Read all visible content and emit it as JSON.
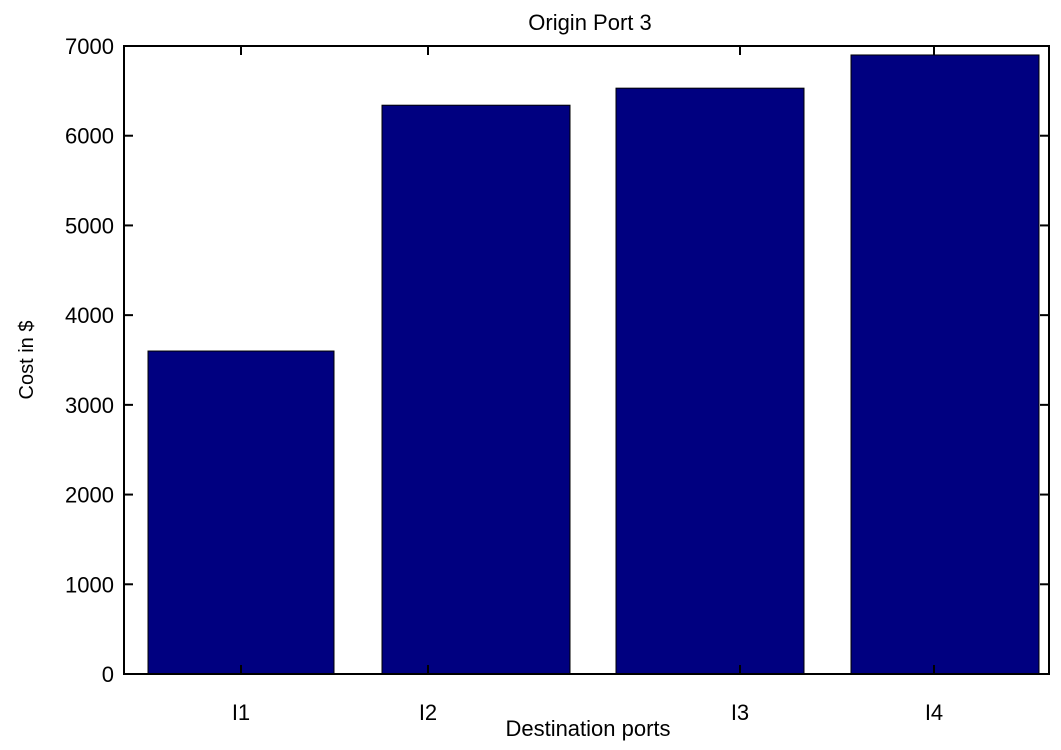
{
  "chart_data": {
    "type": "bar",
    "title": "Origin Port 3",
    "xlabel": "Destination ports",
    "ylabel": "Cost in $",
    "categories": [
      "I1",
      "I2",
      "I3",
      "I4"
    ],
    "values": [
      3600,
      6340,
      6530,
      6900
    ],
    "ylim": [
      0,
      7000
    ],
    "yticks": [
      0,
      1000,
      2000,
      3000,
      4000,
      5000,
      6000,
      7000
    ],
    "xtick_labels": [
      "I1",
      "I2",
      "I3",
      "I4"
    ],
    "grid": false,
    "bar_color": "#000080"
  }
}
